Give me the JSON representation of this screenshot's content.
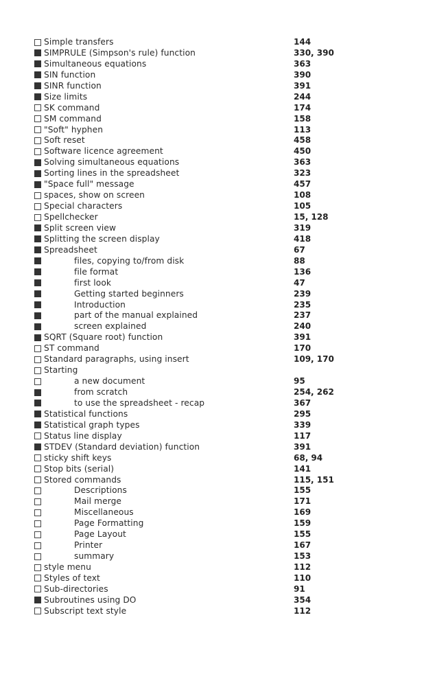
{
  "colors": {
    "text": "#2a2a2a",
    "filled_marker": "#333333",
    "empty_marker_border": "#444444"
  },
  "marker_legend": {
    "filled": "filled-square",
    "empty": "empty-square"
  },
  "entries": [
    {
      "term": "Simple transfers",
      "pages": "144",
      "filled": false,
      "sub": false
    },
    {
      "term": "SIMPRULE (Simpson's rule) function",
      "pages": "330, 390",
      "filled": true,
      "sub": false
    },
    {
      "term": "Simultaneous equations",
      "pages": "363",
      "filled": true,
      "sub": false
    },
    {
      "term": "SIN function",
      "pages": "390",
      "filled": true,
      "sub": false
    },
    {
      "term": "SINR function",
      "pages": "391",
      "filled": true,
      "sub": false
    },
    {
      "term": "Size limits",
      "pages": "244",
      "filled": true,
      "sub": false
    },
    {
      "term": "SK command",
      "pages": "174",
      "filled": false,
      "sub": false
    },
    {
      "term": "SM command",
      "pages": "158",
      "filled": false,
      "sub": false
    },
    {
      "term": "\"Soft\" hyphen",
      "pages": "113",
      "filled": false,
      "sub": false
    },
    {
      "term": "Soft reset",
      "pages": "458",
      "filled": false,
      "sub": false
    },
    {
      "term": "Software licence agreement",
      "pages": "450",
      "filled": false,
      "sub": false
    },
    {
      "term": "Solving simultaneous equations",
      "pages": "363",
      "filled": true,
      "sub": false
    },
    {
      "term": "Sorting lines in the spreadsheet",
      "pages": "323",
      "filled": true,
      "sub": false
    },
    {
      "term": "\"Space full\" message",
      "pages": "457",
      "filled": true,
      "sub": false
    },
    {
      "term": "spaces, show on screen",
      "pages": "108",
      "filled": false,
      "sub": false
    },
    {
      "term": "Special characters",
      "pages": "105",
      "filled": false,
      "sub": false
    },
    {
      "term": "Spellchecker",
      "pages": "15, 128",
      "filled": false,
      "sub": false
    },
    {
      "term": "Split screen view",
      "pages": "319",
      "filled": true,
      "sub": false
    },
    {
      "term": "Splitting the screen display",
      "pages": "418",
      "filled": true,
      "sub": false
    },
    {
      "term": "Spreadsheet",
      "pages": "67",
      "filled": true,
      "sub": false
    },
    {
      "term": "files, copying to/from disk",
      "pages": "88",
      "filled": true,
      "sub": true
    },
    {
      "term": "file format",
      "pages": "136",
      "filled": true,
      "sub": true
    },
    {
      "term": "first look",
      "pages": "47",
      "filled": true,
      "sub": true
    },
    {
      "term": "Getting started beginners",
      "pages": "239",
      "filled": true,
      "sub": true
    },
    {
      "term": "Introduction",
      "pages": "235",
      "filled": true,
      "sub": true
    },
    {
      "term": "part of the manual explained",
      "pages": "237",
      "filled": true,
      "sub": true
    },
    {
      "term": "screen explained",
      "pages": "240",
      "filled": true,
      "sub": true
    },
    {
      "term": "SQRT (Square root) function",
      "pages": "391",
      "filled": true,
      "sub": false
    },
    {
      "term": "ST command",
      "pages": "170",
      "filled": false,
      "sub": false
    },
    {
      "term": "Standard paragraphs, using insert",
      "pages": "109, 170",
      "filled": false,
      "sub": false
    },
    {
      "term": "Starting",
      "pages": "",
      "filled": false,
      "sub": false
    },
    {
      "term": "a new document",
      "pages": "95",
      "filled": false,
      "sub": true
    },
    {
      "term": "from scratch",
      "pages": "254, 262",
      "filled": true,
      "sub": true
    },
    {
      "term": "to use the spreadsheet - recap",
      "pages": "367",
      "filled": true,
      "sub": true
    },
    {
      "term": "Statistical functions",
      "pages": "295",
      "filled": true,
      "sub": false
    },
    {
      "term": "Statistical graph types",
      "pages": "339",
      "filled": true,
      "sub": false
    },
    {
      "term": "Status line display",
      "pages": "117",
      "filled": false,
      "sub": false
    },
    {
      "term": "STDEV (Standard deviation) function",
      "pages": "391",
      "filled": true,
      "sub": false
    },
    {
      "term": "sticky shift keys",
      "pages": "68, 94",
      "filled": false,
      "sub": false
    },
    {
      "term": "Stop bits (serial)",
      "pages": "141",
      "filled": false,
      "sub": false
    },
    {
      "term": "Stored commands",
      "pages": "115, 151",
      "filled": false,
      "sub": false
    },
    {
      "term": "Descriptions",
      "pages": "155",
      "filled": false,
      "sub": true
    },
    {
      "term": "Mail merge",
      "pages": "171",
      "filled": false,
      "sub": true
    },
    {
      "term": "Miscellaneous",
      "pages": "169",
      "filled": false,
      "sub": true
    },
    {
      "term": "Page Formatting",
      "pages": "159",
      "filled": false,
      "sub": true
    },
    {
      "term": "Page Layout",
      "pages": "155",
      "filled": false,
      "sub": true
    },
    {
      "term": "Printer",
      "pages": "167",
      "filled": false,
      "sub": true
    },
    {
      "term": "summary",
      "pages": "153",
      "filled": false,
      "sub": true
    },
    {
      "term": "style menu",
      "pages": "112",
      "filled": false,
      "sub": false
    },
    {
      "term": "Styles of text",
      "pages": "110",
      "filled": false,
      "sub": false
    },
    {
      "term": "Sub-directories",
      "pages": "91",
      "filled": false,
      "sub": false
    },
    {
      "term": "Subroutines using DO",
      "pages": "354",
      "filled": true,
      "sub": false
    },
    {
      "term": "Subscript text style",
      "pages": "112",
      "filled": false,
      "sub": false
    }
  ]
}
